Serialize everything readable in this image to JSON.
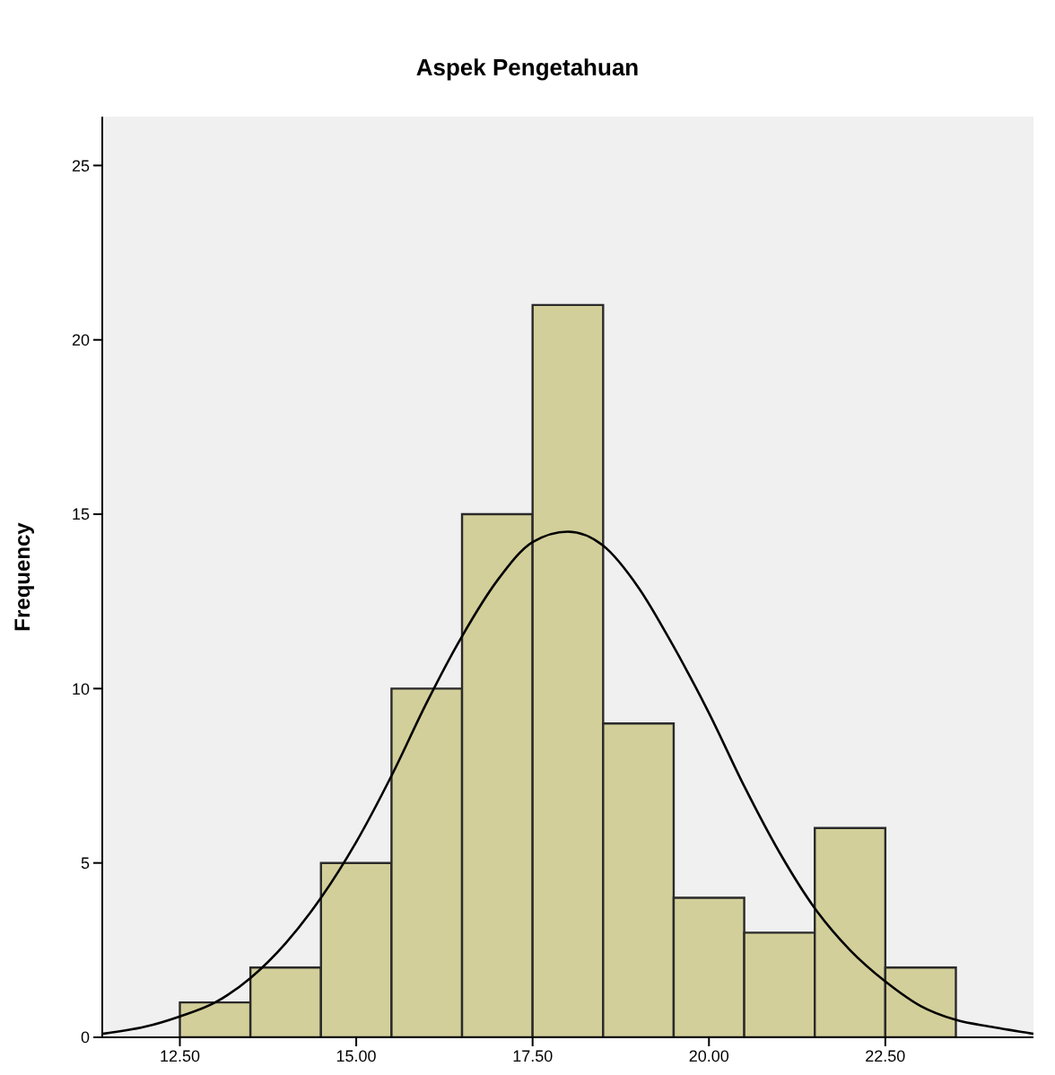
{
  "chart_data": [
    {
      "type": "histogram",
      "title": "Aspek Pengetahuan",
      "ylabel": "Frequency",
      "bins": [
        12.5,
        13.5,
        14.5,
        15.5,
        16.5,
        17.5,
        18.5,
        19.5,
        20.5,
        21.5,
        22.5,
        23.5
      ],
      "values": [
        1,
        2,
        5,
        10,
        15,
        21,
        9,
        4,
        3,
        6,
        2
      ],
      "color": "#d3cf9a",
      "xlim": [
        11.4,
        24.6
      ],
      "xticks": [
        {
          "value": 12.5,
          "label": "12.50"
        },
        {
          "value": 15,
          "label": "15.00"
        },
        {
          "value": 17.5,
          "label": "17.50"
        },
        {
          "value": 20,
          "label": "20.00"
        },
        {
          "value": 22.5,
          "label": "22.50"
        }
      ],
      "ylim": [
        0,
        26.4
      ],
      "yticks": [
        0,
        5,
        10,
        15,
        20,
        25
      ],
      "grid": false,
      "legend": false,
      "series": [
        {
          "type": "line",
          "color": "#000000",
          "marker": "none",
          "x": [
            11.4,
            12,
            12.5,
            13,
            13.5,
            14,
            14.5,
            15,
            15.5,
            16,
            16.5,
            17,
            17.5,
            18,
            18.5,
            19,
            19.5,
            20,
            20.5,
            21,
            21.5,
            22,
            22.5,
            23,
            23.5,
            24,
            24.6
          ],
          "values": [
            0.1,
            0.3,
            0.6,
            1.0,
            1.7,
            2.7,
            4.0,
            5.6,
            7.5,
            9.6,
            11.5,
            13.1,
            14.2,
            14.5,
            14.1,
            12.9,
            11.2,
            9.3,
            7.2,
            5.3,
            3.7,
            2.5,
            1.6,
            0.9,
            0.5,
            0.3,
            0.1
          ]
        }
      ]
    }
  ]
}
